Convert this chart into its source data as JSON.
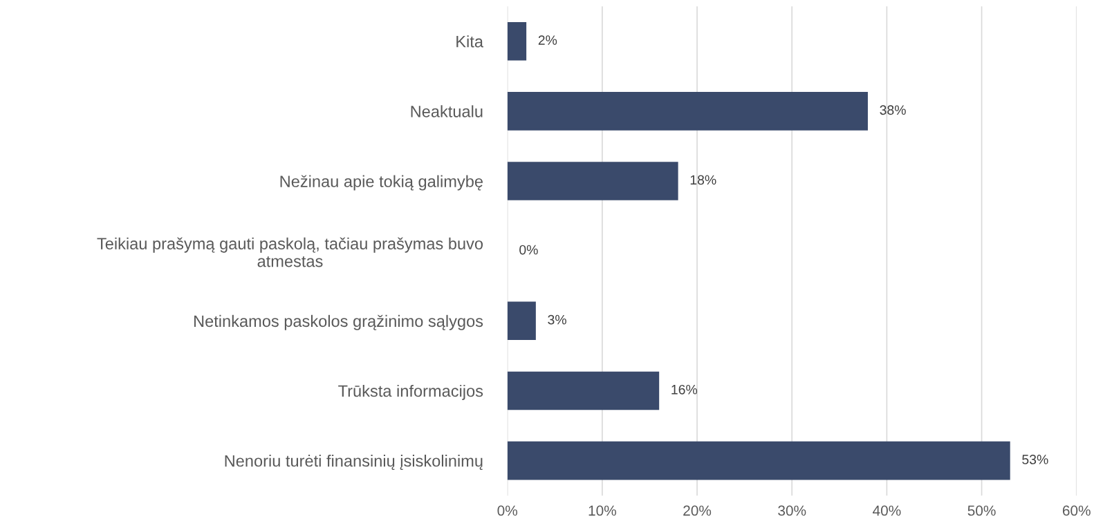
{
  "chart_data": {
    "type": "bar",
    "orientation": "horizontal",
    "categories": [
      "Kita",
      "Neaktualu",
      "Nežinau apie tokią galimybę",
      "Teikiau prašymą gauti paskolą, tačiau prašymas buvo\natmestas",
      "Netinkamos paskolos grąžinimo sąlygos",
      "Trūksta informacijos",
      "Nenoriu turėti finansinių įsiskolinimų"
    ],
    "values": [
      2,
      38,
      18,
      0,
      3,
      16,
      53
    ],
    "value_labels": [
      "2%",
      "38%",
      "18%",
      "0%",
      "3%",
      "16%",
      "53%"
    ],
    "color": "#3a4a6b",
    "xlim": [
      0,
      60
    ],
    "xticks": [
      {
        "value": 0,
        "label": "0%"
      },
      {
        "value": 10,
        "label": "10%"
      },
      {
        "value": 20,
        "label": "20%"
      },
      {
        "value": 30,
        "label": "30%"
      },
      {
        "value": 40,
        "label": "40%"
      },
      {
        "value": 50,
        "label": "50%"
      },
      {
        "value": 60,
        "label": "60%"
      }
    ],
    "grid": "x"
  }
}
